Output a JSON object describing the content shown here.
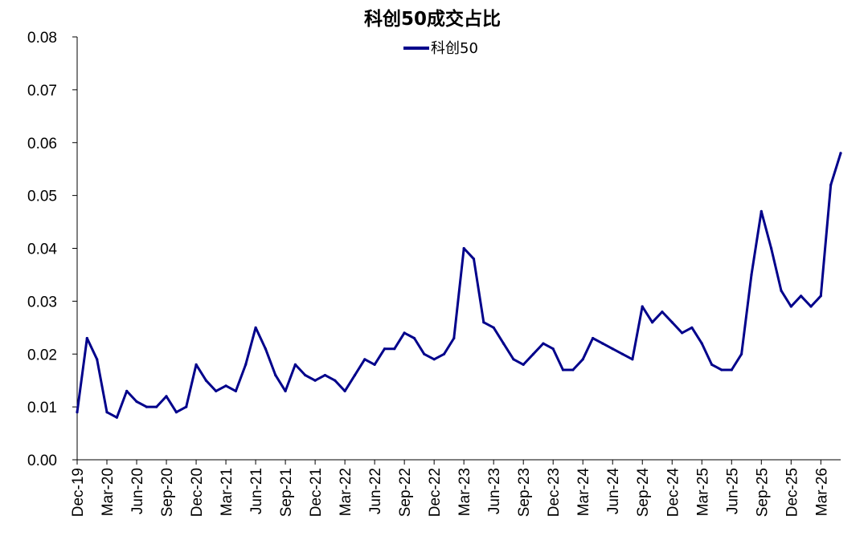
{
  "chart_data": {
    "type": "line",
    "title": "科创50成交占比",
    "xlabel": "",
    "ylabel": "",
    "ylim": [
      0,
      0.08
    ],
    "yticks": [
      "0.00",
      "0.01",
      "0.02",
      "0.03",
      "0.04",
      "0.05",
      "0.06",
      "0.07",
      "0.08"
    ],
    "xticks": [
      "Dec-19",
      "Mar-20",
      "Jun-20",
      "Sep-20",
      "Dec-20",
      "Mar-21",
      "Jun-21",
      "Sep-21",
      "Dec-21",
      "Mar-22",
      "Jun-22",
      "Sep-22",
      "Dec-22",
      "Mar-23",
      "Jun-23",
      "Sep-23",
      "Dec-23",
      "Mar-24",
      "Jun-24",
      "Sep-24",
      "Dec-24",
      "Mar-25",
      "Jun-25",
      "Sep-25",
      "Dec-25",
      "Mar-26"
    ],
    "legend_position": "top-center",
    "grid": false,
    "series": [
      {
        "name": "科创50",
        "color": "#00008B",
        "x": [
          "2019-12",
          "2020-01",
          "2020-02",
          "2020-03",
          "2020-04",
          "2020-05",
          "2020-06",
          "2020-07",
          "2020-08",
          "2020-09",
          "2020-10",
          "2020-11",
          "2020-12",
          "2021-01",
          "2021-02",
          "2021-03",
          "2021-04",
          "2021-05",
          "2021-06",
          "2021-07",
          "2021-08",
          "2021-09",
          "2021-10",
          "2021-11",
          "2021-12",
          "2022-01",
          "2022-02",
          "2022-03",
          "2022-04",
          "2022-05",
          "2022-06",
          "2022-07",
          "2022-08",
          "2022-09",
          "2022-10",
          "2022-11",
          "2022-12",
          "2023-01",
          "2023-02",
          "2023-03",
          "2023-04",
          "2023-05",
          "2023-06",
          "2023-07",
          "2023-08",
          "2023-09",
          "2023-10",
          "2023-11",
          "2023-12",
          "2024-01",
          "2024-02",
          "2024-03",
          "2024-04",
          "2024-05",
          "2024-06",
          "2024-07",
          "2024-08",
          "2024-09",
          "2024-10",
          "2024-11",
          "2024-12",
          "2025-01",
          "2025-02",
          "2025-03",
          "2025-04",
          "2025-05",
          "2025-06",
          "2025-07",
          "2025-08",
          "2025-09",
          "2025-10",
          "2025-11",
          "2025-12",
          "2026-01",
          "2026-02",
          "2026-03",
          "2026-04",
          "2026-05"
        ],
        "values": [
          0.009,
          0.023,
          0.019,
          0.009,
          0.008,
          0.013,
          0.011,
          0.01,
          0.01,
          0.012,
          0.009,
          0.01,
          0.018,
          0.015,
          0.013,
          0.014,
          0.013,
          0.018,
          0.025,
          0.021,
          0.016,
          0.013,
          0.018,
          0.016,
          0.015,
          0.016,
          0.015,
          0.013,
          0.016,
          0.019,
          0.018,
          0.021,
          0.021,
          0.024,
          0.023,
          0.02,
          0.019,
          0.02,
          0.023,
          0.04,
          0.038,
          0.026,
          0.025,
          0.022,
          0.019,
          0.018,
          0.02,
          0.022,
          0.021,
          0.017,
          0.017,
          0.019,
          0.023,
          0.022,
          0.021,
          0.02,
          0.019,
          0.029,
          0.026,
          0.028,
          0.026,
          0.024,
          0.025,
          0.022,
          0.018,
          0.017,
          0.017,
          0.02,
          0.035,
          0.047,
          0.04,
          0.032,
          0.029,
          0.031,
          0.029,
          0.031,
          0.052,
          0.058
        ]
      }
    ]
  }
}
